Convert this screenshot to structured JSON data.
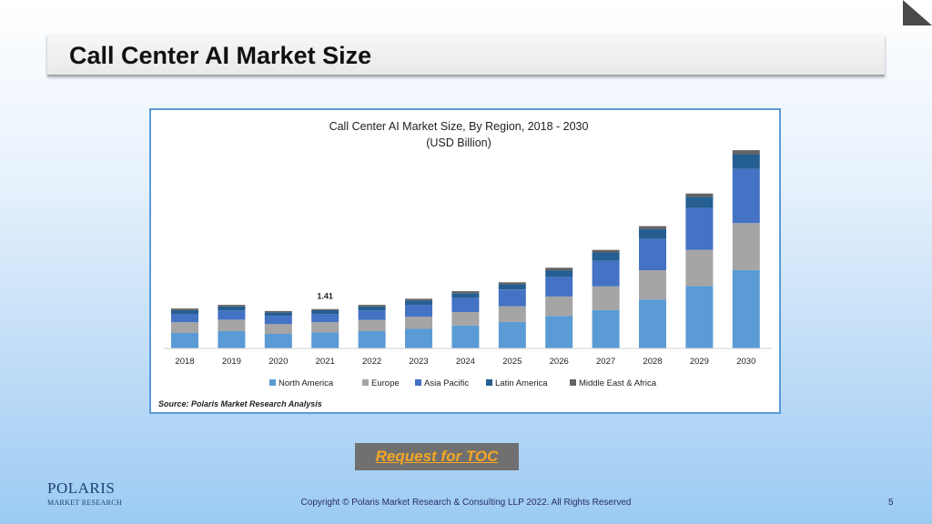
{
  "slide": {
    "title": "Call Center AI Market Size",
    "toc_button": "Request for TOC",
    "copyright": "Copyright © Polaris Market Research & Consulting LLP 2022. All Rights Reserved",
    "page_number": "5",
    "logo": {
      "brand": "POLARIS",
      "sub": "MARKET RESEARCH"
    }
  },
  "chart_data": {
    "type": "bar",
    "stacked": true,
    "title": "Call Center AI Market Size, By Region, 2018 - 2030",
    "subtitle": "(USD Billion)",
    "source": "Source: Polaris Market Research Analysis",
    "annotation": {
      "category": "2021",
      "text": "1.41"
    },
    "categories": [
      "2018",
      "2019",
      "2020",
      "2021",
      "2022",
      "2023",
      "2024",
      "2025",
      "2026",
      "2027",
      "2028",
      "2029",
      "2030"
    ],
    "series": [
      {
        "name": "North America",
        "color": "#5b9bd5",
        "values": [
          0.56,
          0.62,
          0.52,
          0.57,
          0.62,
          0.7,
          0.82,
          0.95,
          1.16,
          1.38,
          1.75,
          2.24,
          2.81
        ]
      },
      {
        "name": "Europe",
        "color": "#a5a5a5",
        "values": [
          0.38,
          0.41,
          0.35,
          0.37,
          0.4,
          0.44,
          0.48,
          0.56,
          0.7,
          0.84,
          1.05,
          1.29,
          1.68
        ]
      },
      {
        "name": "Asia Pacific",
        "color": "#4472c4",
        "values": [
          0.3,
          0.33,
          0.3,
          0.29,
          0.34,
          0.42,
          0.51,
          0.6,
          0.71,
          0.92,
          1.13,
          1.5,
          1.94
        ]
      },
      {
        "name": "Latin America",
        "color": "#255e91",
        "values": [
          0.13,
          0.14,
          0.12,
          0.14,
          0.14,
          0.16,
          0.17,
          0.19,
          0.23,
          0.3,
          0.35,
          0.4,
          0.53
        ]
      },
      {
        "name": "Middle East & Africa",
        "color": "#636363",
        "values": [
          0.06,
          0.06,
          0.05,
          0.04,
          0.06,
          0.06,
          0.07,
          0.07,
          0.09,
          0.09,
          0.1,
          0.12,
          0.14
        ]
      }
    ],
    "ylim": [
      0,
      7.3
    ],
    "xlabel": "",
    "ylabel": "",
    "grid": false,
    "legend": "bottom"
  }
}
